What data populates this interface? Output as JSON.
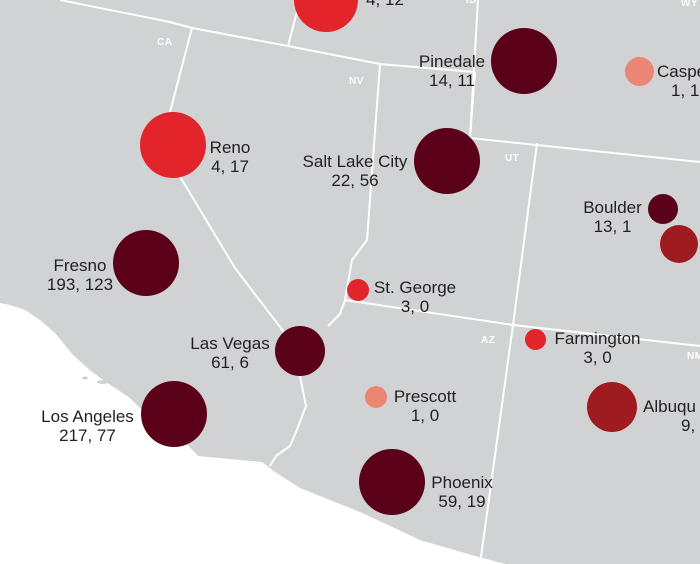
{
  "colors": {
    "land": "#d1d2d4",
    "border": "#ffffff",
    "ocean": "#ffffff",
    "label_text": "#231f20",
    "state_abbr": "#ffffff",
    "bubble_darkest": "#5a0018",
    "bubble_dark_red": "#9e1b20",
    "bubble_red": "#e2242b",
    "bubble_light": "#ec8674"
  },
  "states": [
    {
      "abbr": "CA"
    },
    {
      "abbr": "NV"
    },
    {
      "abbr": "UT"
    },
    {
      "abbr": "AZ"
    },
    {
      "abbr": "NM"
    },
    {
      "abbr": "WY"
    },
    {
      "abbr": "ID"
    }
  ],
  "cities": [
    {
      "name": "",
      "values": "4, 12",
      "color": "bubble_red",
      "size": 4
    },
    {
      "name": "Pinedale",
      "values": "14, 11",
      "color": "bubble_darkest",
      "size": 4
    },
    {
      "name": "Caspe",
      "values": "1, 1",
      "color": "bubble_light",
      "size": 1
    },
    {
      "name": "Reno",
      "values": "4, 17",
      "color": "bubble_red",
      "size": 4
    },
    {
      "name": "Salt Lake City",
      "values": "22, 56",
      "color": "bubble_darkest",
      "size": 4
    },
    {
      "name": "Boulder",
      "values": "13, 1",
      "color": "bubble_darkest",
      "size": 2
    },
    {
      "name": "",
      "values": "",
      "color": "bubble_dark_red",
      "size": 2
    },
    {
      "name": "Fresno",
      "values": "193, 123",
      "color": "bubble_darkest",
      "size": 4
    },
    {
      "name": "St. George",
      "values": "3, 0",
      "color": "bubble_red",
      "size": 1
    },
    {
      "name": "Las Vegas",
      "values": "61, 6",
      "color": "bubble_darkest",
      "size": 3
    },
    {
      "name": "Farmington",
      "values": "3, 0",
      "color": "bubble_red",
      "size": 1
    },
    {
      "name": "Prescott",
      "values": "1, 0",
      "color": "bubble_light",
      "size": 1
    },
    {
      "name": "Los Angeles",
      "values": "217, 77",
      "color": "bubble_darkest",
      "size": 4
    },
    {
      "name": "Albuqu",
      "values": "9,",
      "color": "bubble_dark_red",
      "size": 3
    },
    {
      "name": "Phoenix",
      "values": "59, 19",
      "color": "bubble_darkest",
      "size": 4
    }
  ]
}
